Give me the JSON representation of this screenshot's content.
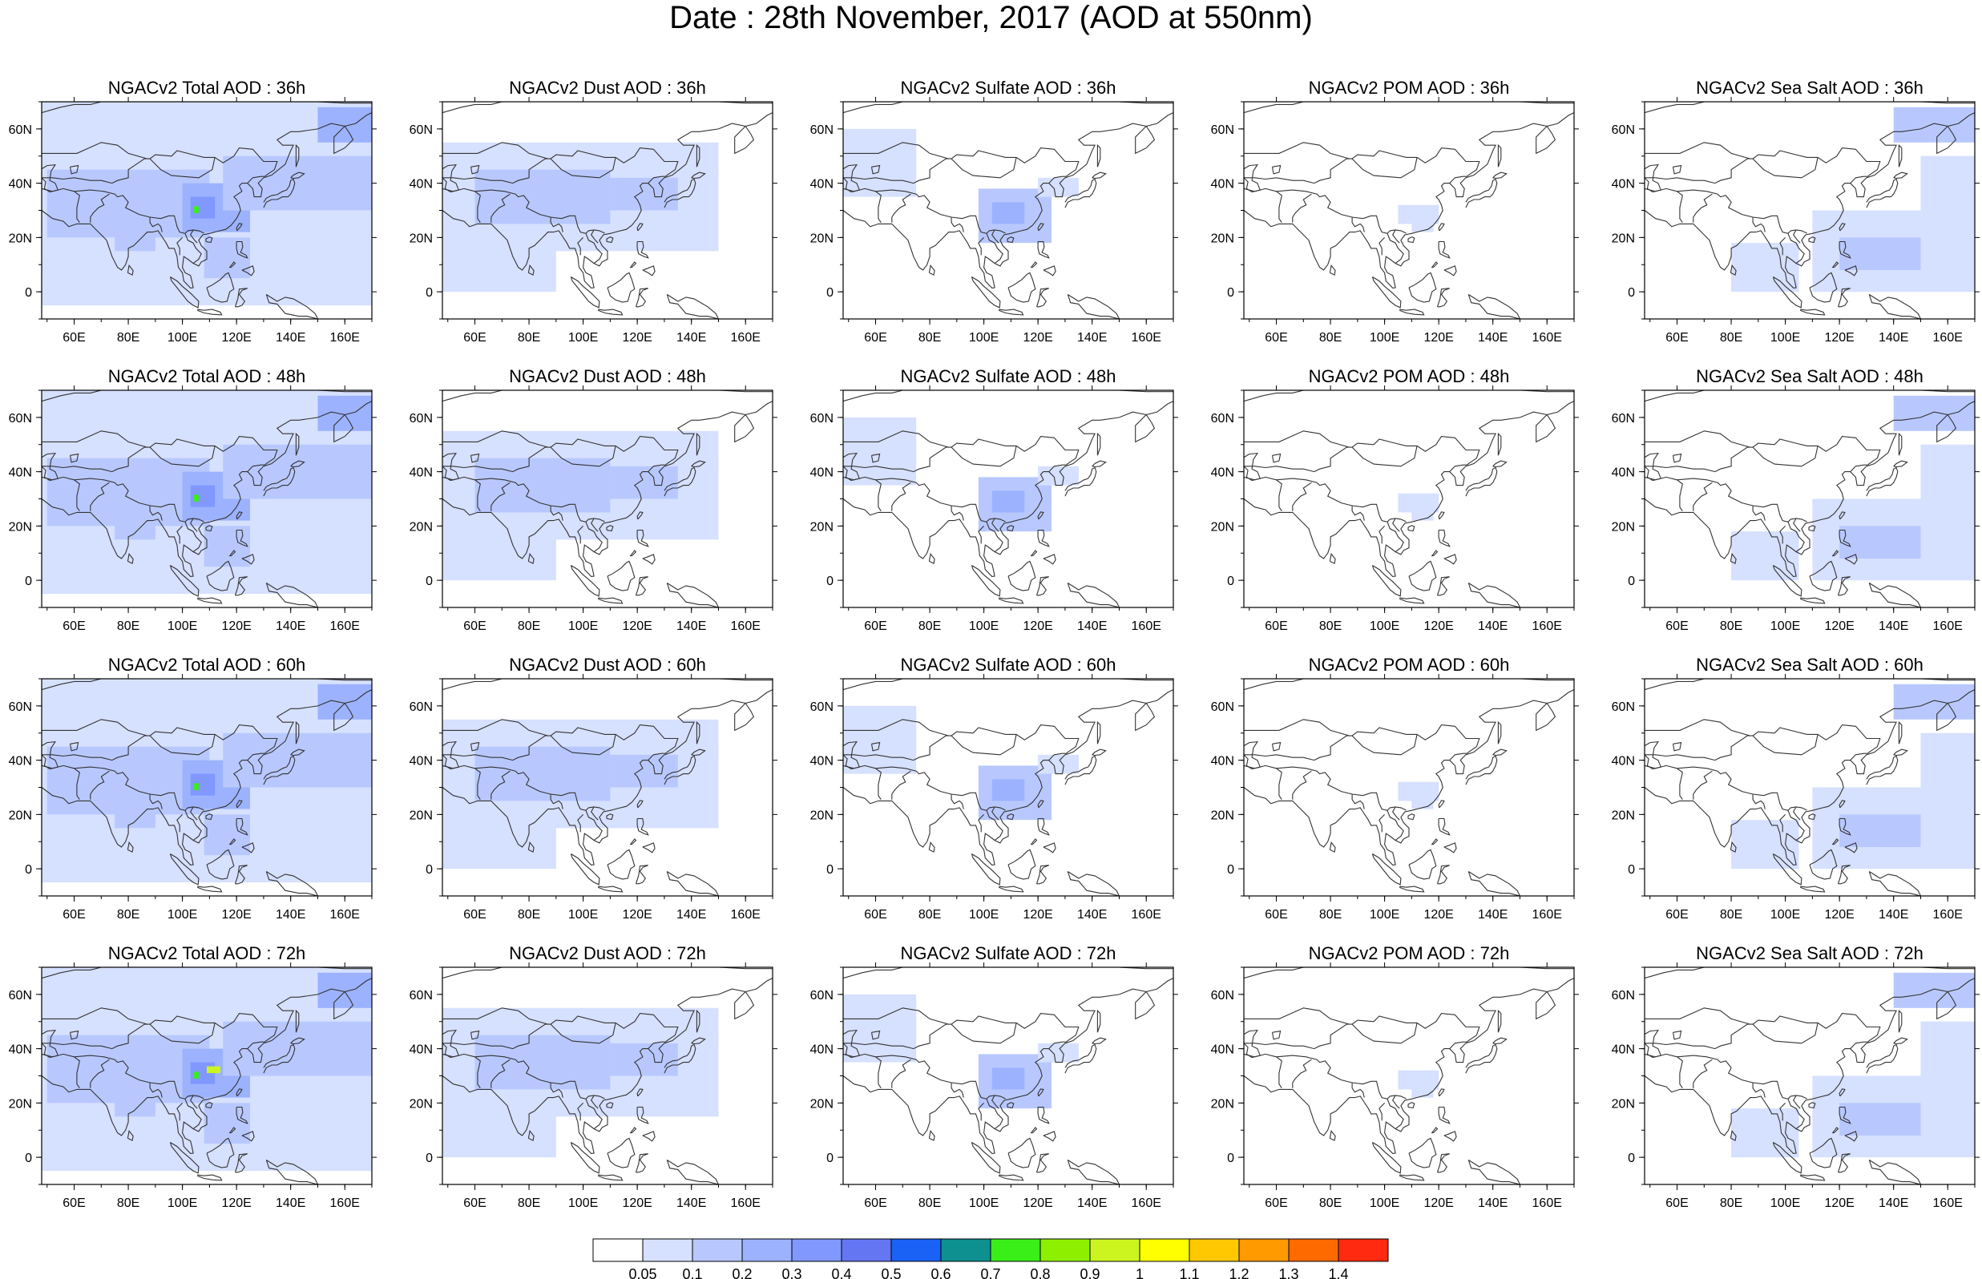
{
  "title": "Date : 28th November, 2017 (AOD at 550nm)",
  "x_ticks": [
    "60E",
    "80E",
    "100E",
    "120E",
    "140E",
    "160E"
  ],
  "y_ticks": [
    "60N",
    "40N",
    "20N",
    "0"
  ],
  "x_tick_values": [
    60,
    80,
    100,
    120,
    140,
    160
  ],
  "y_tick_values": [
    60,
    40,
    20,
    0
  ],
  "lon_range": [
    48,
    170
  ],
  "lat_range": [
    -10,
    70
  ],
  "panels": [
    [
      "NGACv2 Total AOD : 36h",
      "NGACv2 Dust AOD : 36h",
      "NGACv2 Sulfate AOD : 36h",
      "NGACv2 POM AOD : 36h",
      "NGACv2 Sea Salt AOD : 36h"
    ],
    [
      "NGACv2 Total AOD : 48h",
      "NGACv2 Dust AOD : 48h",
      "NGACv2 Sulfate AOD : 48h",
      "NGACv2 POM AOD : 48h",
      "NGACv2 Sea Salt AOD : 48h"
    ],
    [
      "NGACv2 Total AOD : 60h",
      "NGACv2 Dust AOD : 60h",
      "NGACv2 Sulfate AOD : 60h",
      "NGACv2 POM AOD : 60h",
      "NGACv2 Sea Salt AOD : 60h"
    ],
    [
      "NGACv2 Total AOD : 72h",
      "NGACv2 Dust AOD : 72h",
      "NGACv2 Sulfate AOD : 72h",
      "NGACv2 POM AOD : 72h",
      "NGACv2 Sea Salt  AOD : 72h"
    ]
  ],
  "colorbar": {
    "labels": [
      "0.05",
      "0.1",
      "0.2",
      "0.3",
      "0.4",
      "0.5",
      "0.6",
      "0.7",
      "0.8",
      "0.9",
      "1",
      "1.1",
      "1.2",
      "1.3",
      "1.4"
    ],
    "colors": [
      "#ffffff",
      "#d6e0ff",
      "#b8c8ff",
      "#9cb2ff",
      "#8098ff",
      "#6476f2",
      "#1a62f5",
      "#0e9090",
      "#3aee18",
      "#8ef000",
      "#ccf520",
      "#ffff00",
      "#ffc800",
      "#ff9a00",
      "#ff6a00",
      "#ff2a10"
    ]
  },
  "fill_colors": {
    "level1": "#d6e0ff",
    "level2": "#b8c8ff",
    "level3": "#9cb2ff",
    "level4": "#8098ff",
    "level5": "#6476f2",
    "hotspot_green": "#3aee18",
    "hotspot_yellow": "#ccf520",
    "coastline": "#333333"
  }
}
